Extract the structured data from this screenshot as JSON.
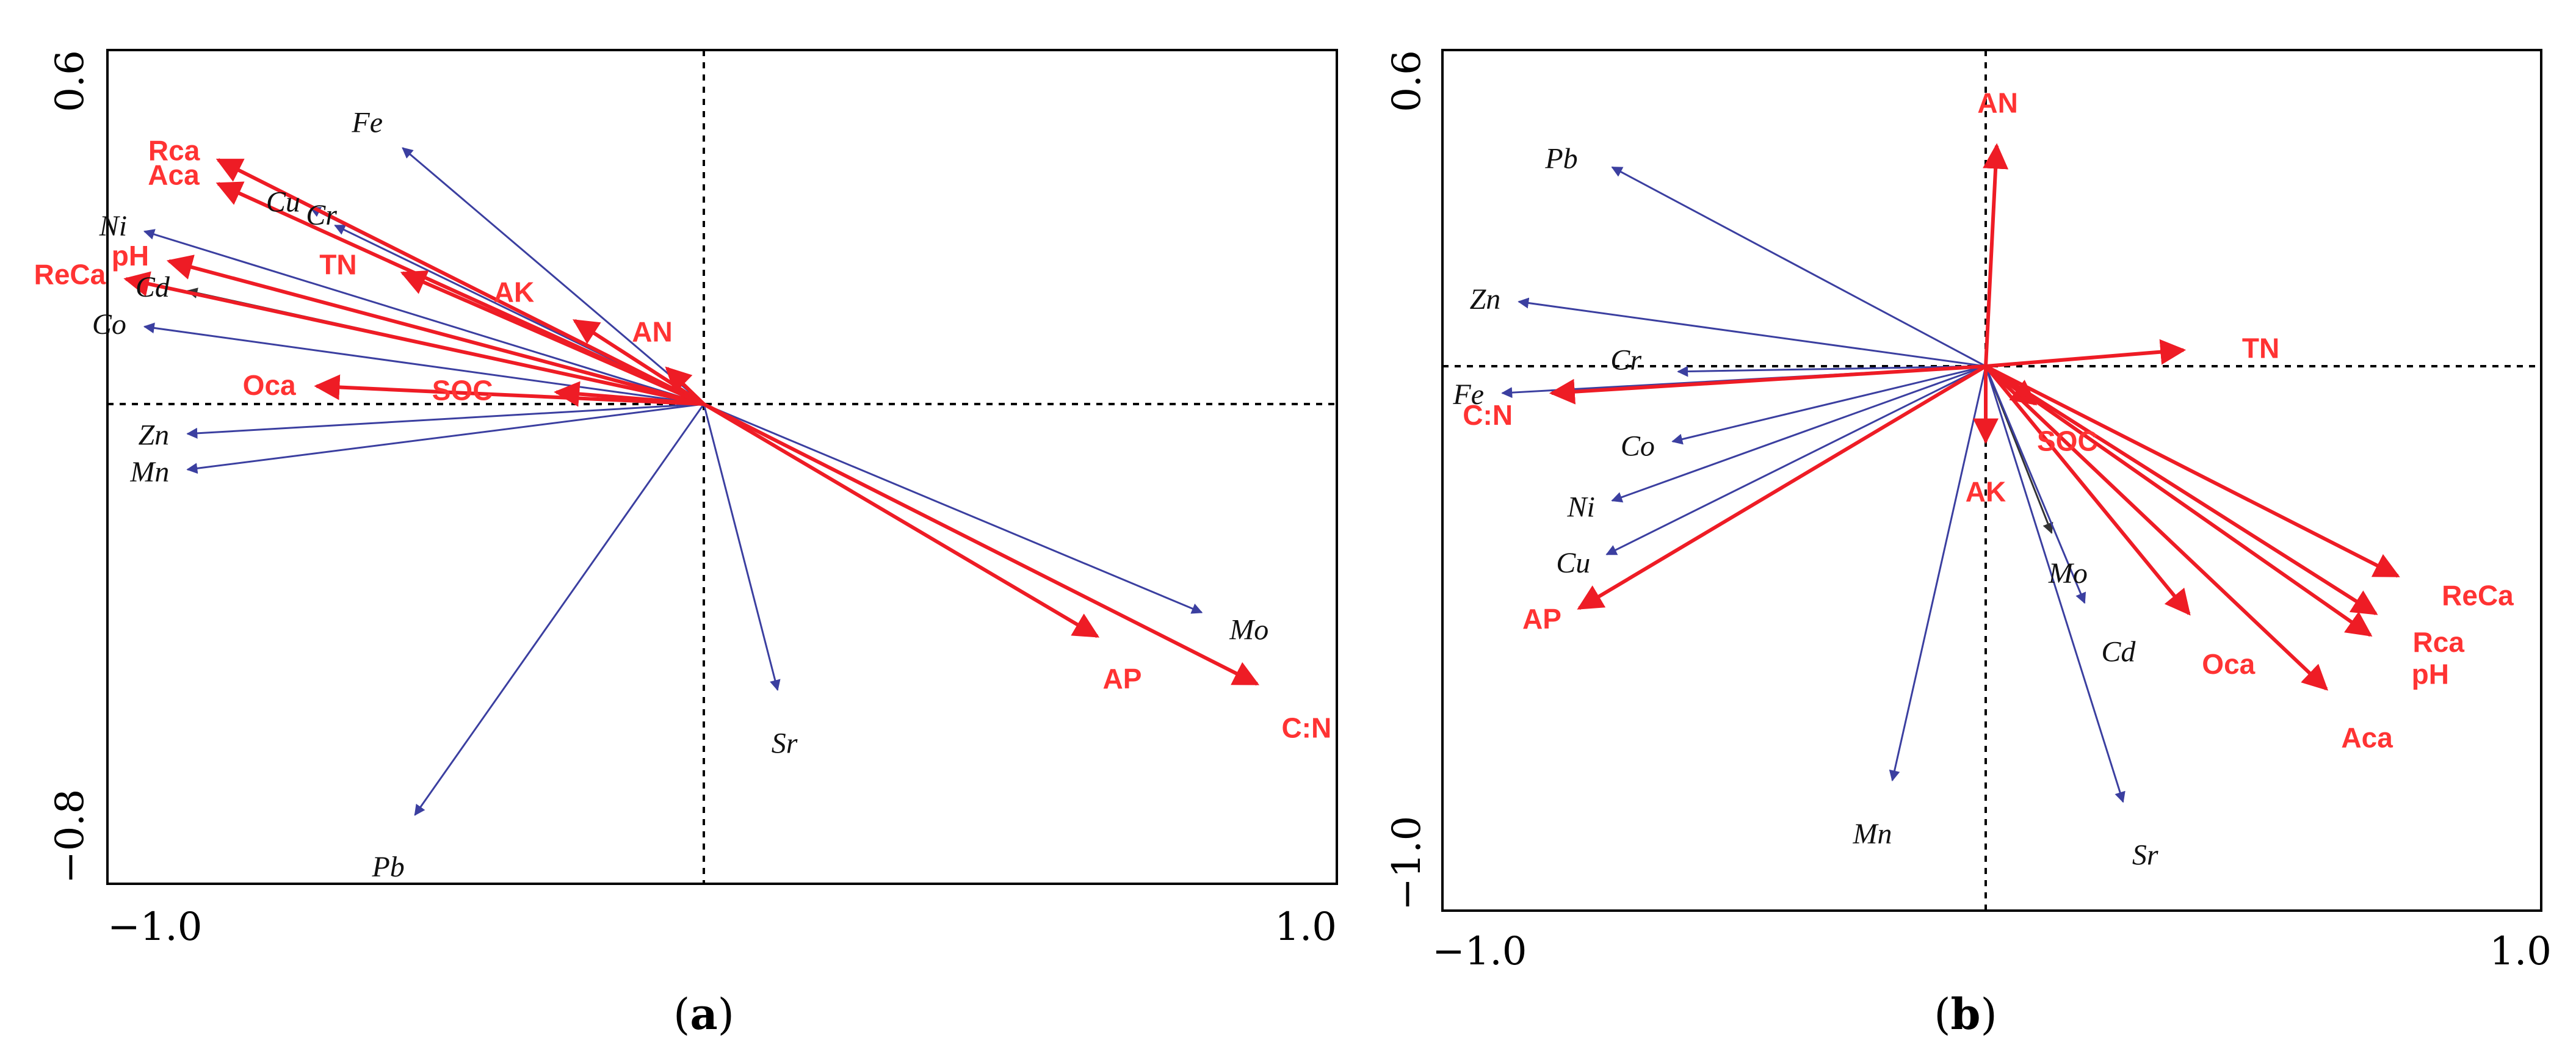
{
  "colors": {
    "env": "#ee1c25",
    "env_label": "#ff3333",
    "species": "#3b3fa0",
    "species_black": "#333333",
    "species_label": "#111111"
  },
  "chart_data": [
    {
      "type": "rda-biplot",
      "caption_letter": "a",
      "xlim": [
        -1.0,
        1.0
      ],
      "ylim": [
        -0.8,
        0.6
      ],
      "x_tick_labels": [
        "−1.0",
        "1.0"
      ],
      "y_tick_labels": [
        "0.6",
        "−0.8"
      ],
      "environment_vectors": [
        {
          "name": "Rca",
          "x": -0.79,
          "y": 0.41
        },
        {
          "name": "Aca",
          "x": -0.79,
          "y": 0.37
        },
        {
          "name": "pH",
          "x": -0.87,
          "y": 0.24
        },
        {
          "name": "ReCa",
          "x": -0.94,
          "y": 0.21
        },
        {
          "name": "TN",
          "x": -0.49,
          "y": 0.22
        },
        {
          "name": "AK",
          "x": -0.21,
          "y": 0.14
        },
        {
          "name": "AN",
          "x": -0.06,
          "y": 0.06
        },
        {
          "name": "Oca",
          "x": -0.63,
          "y": 0.03
        },
        {
          "name": "SOC",
          "x": -0.24,
          "y": 0.02
        },
        {
          "name": "AP",
          "x": 0.64,
          "y": -0.39
        },
        {
          "name": "C:N",
          "x": 0.9,
          "y": -0.47
        }
      ],
      "species_vectors": [
        {
          "name": "Fe",
          "x": -0.49,
          "y": 0.43
        },
        {
          "name": "Cu",
          "x": -0.64,
          "y": 0.33
        },
        {
          "name": "Cr",
          "x": -0.6,
          "y": 0.3
        },
        {
          "name": "Ni",
          "x": -0.91,
          "y": 0.29
        },
        {
          "name": "Cd",
          "x": -0.84,
          "y": 0.19
        },
        {
          "name": "Co",
          "x": -0.91,
          "y": 0.13
        },
        {
          "name": "Zn",
          "x": -0.84,
          "y": -0.05
        },
        {
          "name": "Mn",
          "x": -0.84,
          "y": -0.11
        },
        {
          "name": "Mo",
          "x": 0.81,
          "y": -0.35
        },
        {
          "name": "Sr",
          "x": 0.12,
          "y": -0.48
        },
        {
          "name": "Pb",
          "x": -0.47,
          "y": -0.69
        }
      ]
    },
    {
      "type": "rda-biplot",
      "caption_letter": "b",
      "xlim": [
        -1.0,
        1.0
      ],
      "ylim": [
        -1.0,
        0.6
      ],
      "x_tick_labels": [
        "−1.0",
        "1.0"
      ],
      "y_tick_labels": [
        "0.6",
        "−1.0"
      ],
      "environment_vectors": [
        {
          "name": "AN",
          "x": 0.02,
          "y": 0.41
        },
        {
          "name": "TN",
          "x": 0.36,
          "y": 0.03
        },
        {
          "name": "C:N",
          "x": -0.79,
          "y": -0.05
        },
        {
          "name": "AK",
          "x": 0.0,
          "y": -0.14
        },
        {
          "name": "SOC",
          "x": 0.09,
          "y": -0.07
        },
        {
          "name": "AP",
          "x": -0.74,
          "y": -0.45
        },
        {
          "name": "ReCa",
          "x": 0.75,
          "y": -0.39
        },
        {
          "name": "Rca",
          "x": 0.71,
          "y": -0.46
        },
        {
          "name": "pH",
          "x": 0.7,
          "y": -0.5
        },
        {
          "name": "Oca",
          "x": 0.37,
          "y": -0.46
        },
        {
          "name": "Aca",
          "x": 0.62,
          "y": -0.6
        }
      ],
      "species_vectors": [
        {
          "name": "Pb",
          "x": -0.68,
          "y": 0.37
        },
        {
          "name": "Zn",
          "x": -0.85,
          "y": 0.12
        },
        {
          "name": "Cr",
          "x": -0.56,
          "y": -0.01
        },
        {
          "name": "Fe",
          "x": -0.88,
          "y": -0.05
        },
        {
          "name": "Co",
          "x": -0.57,
          "y": -0.14
        },
        {
          "name": "Ni",
          "x": -0.68,
          "y": -0.25
        },
        {
          "name": "Cu",
          "x": -0.69,
          "y": -0.35
        },
        {
          "name": "Mo",
          "x": 0.12,
          "y": -0.31
        },
        {
          "name": "Cd",
          "x": 0.18,
          "y": -0.44
        },
        {
          "name": "Mn",
          "x": -0.17,
          "y": -0.77
        },
        {
          "name": "Sr",
          "x": 0.25,
          "y": -0.81
        }
      ]
    }
  ]
}
